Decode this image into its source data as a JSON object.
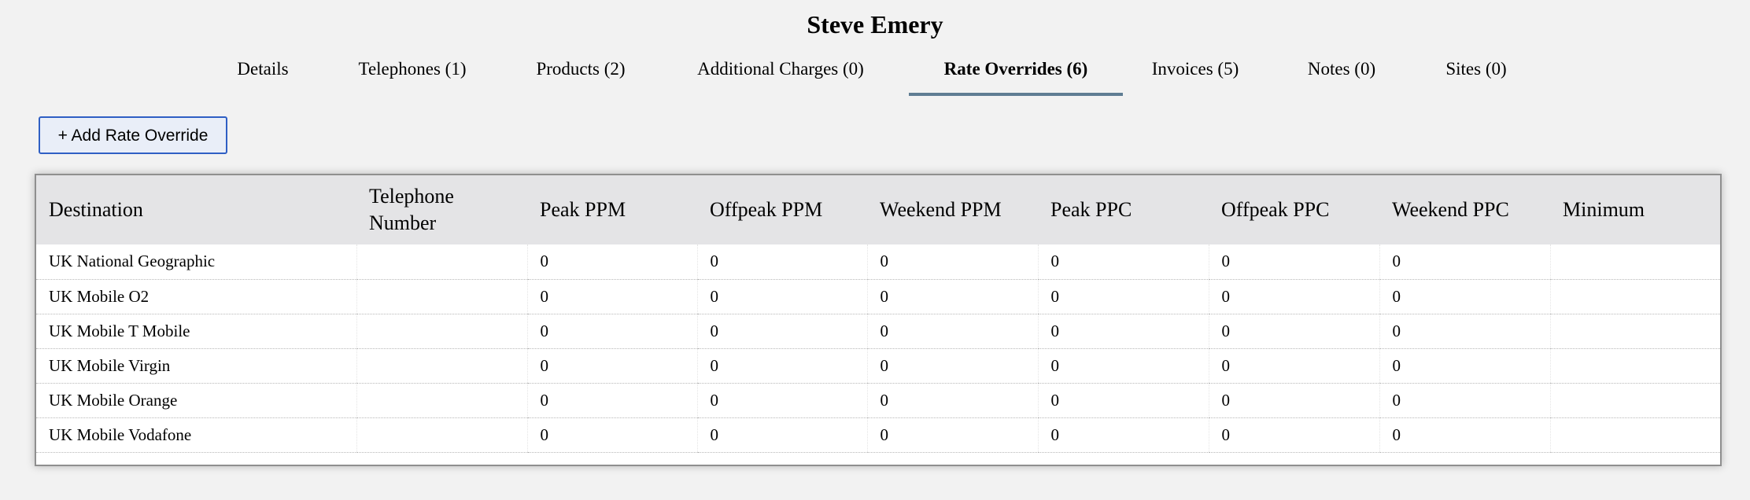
{
  "page": {
    "title": "Steve Emery"
  },
  "tabs": [
    {
      "label": "Details",
      "active": false
    },
    {
      "label": "Telephones (1)",
      "active": false
    },
    {
      "label": "Products (2)",
      "active": false
    },
    {
      "label": "Additional Charges (0)",
      "active": false
    },
    {
      "label": "Rate Overrides (6)",
      "active": true
    },
    {
      "label": "Invoices (5)",
      "active": false
    },
    {
      "label": "Notes (0)",
      "active": false
    },
    {
      "label": "Sites (0)",
      "active": false
    }
  ],
  "toolbar": {
    "add_label": "+ Add Rate Override"
  },
  "table": {
    "headers": [
      "Destination",
      "Telephone Number",
      "Peak PPM",
      "Offpeak PPM",
      "Weekend PPM",
      "Peak PPC",
      "Offpeak PPC",
      "Weekend PPC",
      "Minimum"
    ],
    "rows": [
      [
        "UK National Geographic",
        "",
        "0",
        "0",
        "0",
        "0",
        "0",
        "0",
        ""
      ],
      [
        "UK Mobile O2",
        "",
        "0",
        "0",
        "0",
        "0",
        "0",
        "0",
        ""
      ],
      [
        "UK Mobile T Mobile",
        "",
        "0",
        "0",
        "0",
        "0",
        "0",
        "0",
        ""
      ],
      [
        "UK Mobile Virgin",
        "",
        "0",
        "0",
        "0",
        "0",
        "0",
        "0",
        ""
      ],
      [
        "UK Mobile Orange",
        "",
        "0",
        "0",
        "0",
        "0",
        "0",
        "0",
        ""
      ],
      [
        "UK Mobile Vodafone",
        "",
        "0",
        "0",
        "0",
        "0",
        "0",
        "0",
        ""
      ]
    ]
  },
  "colors": {
    "tab_underline": "#5f7d93",
    "button_border": "#2f5fc4",
    "header_bg": "#e4e4e6"
  }
}
